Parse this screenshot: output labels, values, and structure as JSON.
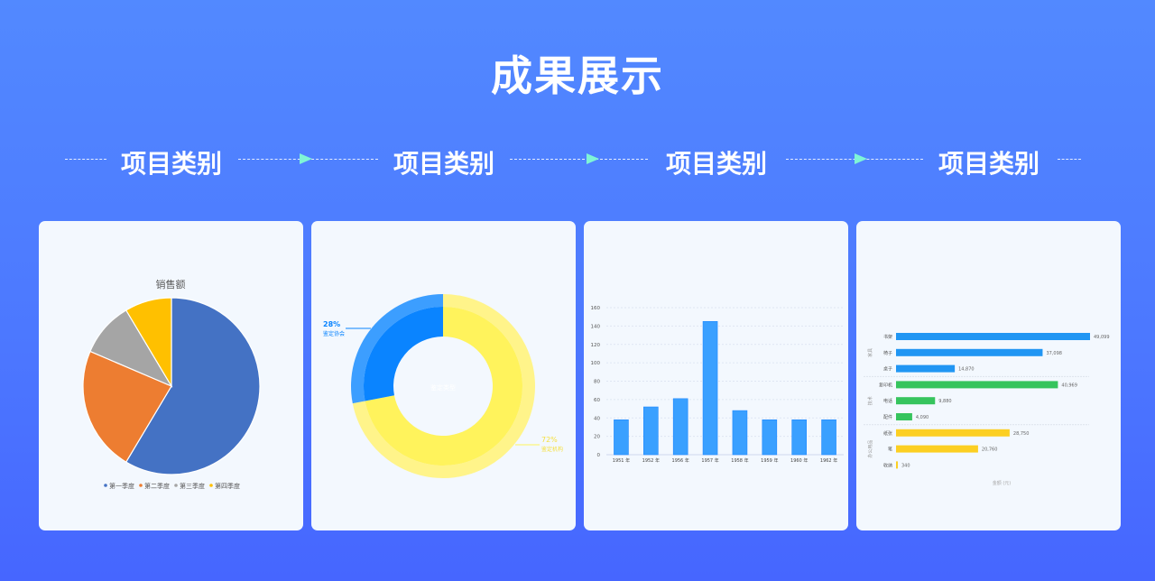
{
  "title": "成果展示",
  "steps": [
    {
      "label": "项目类别"
    },
    {
      "label": "项目类别"
    },
    {
      "label": "项目类别"
    },
    {
      "label": "项目类别"
    }
  ],
  "chart_data": [
    {
      "type": "pie",
      "title": "销售额",
      "categories": [
        "第一季度",
        "第二季度",
        "第三季度",
        "第四季度"
      ],
      "values": [
        8.2,
        3.2,
        1.4,
        1.2
      ],
      "colors": [
        "#4472c4",
        "#ed7d31",
        "#a5a5a5",
        "#ffc000"
      ],
      "legend": "bottom"
    },
    {
      "type": "pie",
      "variant": "donut",
      "center_label": "鉴定类型",
      "categories": [
        "鉴定协会",
        "鉴定机构"
      ],
      "values": [
        28,
        72
      ],
      "value_labels": [
        "28%",
        "72%"
      ],
      "colors": [
        "#0a84ff",
        "#fff35c"
      ]
    },
    {
      "type": "bar",
      "categories": [
        "1951 年",
        "1952 年",
        "1956 年",
        "1957 年",
        "1958 年",
        "1959 年",
        "1960 年",
        "1962 年"
      ],
      "values": [
        38,
        52,
        61,
        145,
        48,
        38,
        38,
        38
      ],
      "ylim": [
        0,
        160
      ],
      "yticks": [
        0,
        20,
        40,
        60,
        80,
        100,
        120,
        140,
        160
      ],
      "grid": true,
      "color": "#3aa0ff"
    },
    {
      "type": "bar",
      "orientation": "horizontal",
      "xlabel": "金额 (元)",
      "groups": [
        {
          "name": "家具",
          "color": "#2196f3",
          "categories": [
            "书架",
            "椅子",
            "桌子"
          ],
          "values": [
            49099,
            37098,
            14870
          ],
          "value_labels": [
            "49,099",
            "37,098",
            "14,870"
          ]
        },
        {
          "name": "技术",
          "color": "#36c45d",
          "categories": [
            "复印机",
            "电话",
            "配件"
          ],
          "values": [
            40969,
            9880,
            4090
          ],
          "value_labels": [
            "40,969",
            "9,880",
            "4,090"
          ]
        },
        {
          "name": "办公用品",
          "color": "#fccf22",
          "categories": [
            "纸张",
            "笔",
            "收纳"
          ],
          "values": [
            28750,
            20760,
            340
          ],
          "value_labels": [
            "28,750",
            "20,760",
            "340"
          ]
        }
      ]
    }
  ]
}
